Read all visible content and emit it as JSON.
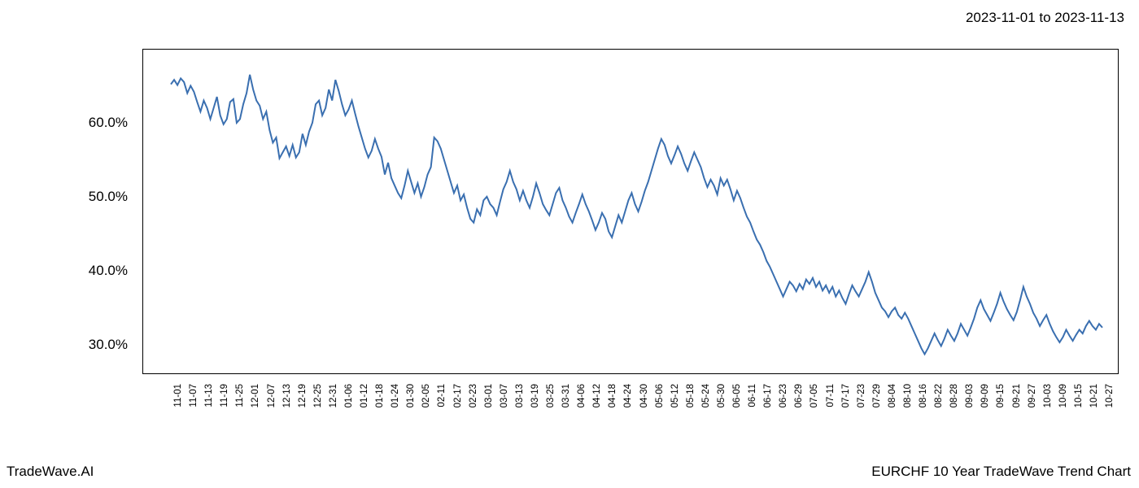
{
  "header": {
    "date_range": "2023-11-01 to 2023-11-13"
  },
  "footer": {
    "brand": "TradeWave.AI",
    "title": "EURCHF 10 Year TradeWave Trend Chart"
  },
  "chart": {
    "type": "line",
    "background_color": "#ffffff",
    "plot_border_color": "#000000",
    "grid_color": "#b3b3b3",
    "line_color": "#3a6fb0",
    "line_width": 2,
    "highlight_fill": "#dcebd3",
    "highlight_stroke": "#9abf87",
    "highlight_range": [
      "11-01",
      "11-13"
    ],
    "ylim": [
      26,
      70
    ],
    "yticks": [
      30.0,
      40.0,
      50.0,
      60.0
    ],
    "ytick_labels": [
      "30.0%",
      "40.0%",
      "50.0%",
      "60.0%"
    ],
    "x_labels": [
      "11-01",
      "11-07",
      "11-13",
      "11-19",
      "11-25",
      "12-01",
      "12-07",
      "12-13",
      "12-19",
      "12-25",
      "12-31",
      "01-06",
      "01-12",
      "01-18",
      "01-24",
      "01-30",
      "02-05",
      "02-11",
      "02-17",
      "02-23",
      "03-01",
      "03-07",
      "03-13",
      "03-19",
      "03-25",
      "03-31",
      "04-06",
      "04-12",
      "04-18",
      "04-24",
      "04-30",
      "05-06",
      "05-12",
      "05-18",
      "05-24",
      "05-30",
      "06-05",
      "06-11",
      "06-17",
      "06-23",
      "06-29",
      "07-05",
      "07-11",
      "07-17",
      "07-23",
      "07-29",
      "08-04",
      "08-10",
      "08-16",
      "08-22",
      "08-28",
      "09-03",
      "09-09",
      "09-15",
      "09-21",
      "09-27",
      "10-03",
      "10-09",
      "10-15",
      "10-21",
      "10-27"
    ],
    "series": [
      65.2,
      65.8,
      65.1,
      66.0,
      65.5,
      64.0,
      65.0,
      64.2,
      62.8,
      61.5,
      63.0,
      62.0,
      60.5,
      62.0,
      63.5,
      61.0,
      59.8,
      60.5,
      62.8,
      63.2,
      60.0,
      60.5,
      62.5,
      64.0,
      66.5,
      64.5,
      63.0,
      62.3,
      60.5,
      61.5,
      59.0,
      57.3,
      58.0,
      55.2,
      56.0,
      56.8,
      55.5,
      57.0,
      55.3,
      56.0,
      58.5,
      57.0,
      58.8,
      60.0,
      62.5,
      63.0,
      61.0,
      62.0,
      64.5,
      63.0,
      65.8,
      64.3,
      62.5,
      61.0,
      61.8,
      63.0,
      61.2,
      59.5,
      58.0,
      56.5,
      55.3,
      56.2,
      57.8,
      56.5,
      55.4,
      53.0,
      54.6,
      52.5,
      51.5,
      50.5,
      49.8,
      51.5,
      53.5,
      52.0,
      50.5,
      51.8,
      50.0,
      51.3,
      53.0,
      54.0,
      58.0,
      57.5,
      56.5,
      55.0,
      53.5,
      52.0,
      50.5,
      51.5,
      49.5,
      50.3,
      48.5,
      47.0,
      46.5,
      48.3,
      47.5,
      49.5,
      50.0,
      49.0,
      48.5,
      47.5,
      49.3,
      51.0,
      52.0,
      53.5,
      52.0,
      51.0,
      49.5,
      50.8,
      49.5,
      48.5,
      50.0,
      51.8,
      50.5,
      49.0,
      48.2,
      47.5,
      49.0,
      50.5,
      51.2,
      49.5,
      48.5,
      47.3,
      46.5,
      47.8,
      49.0,
      50.3,
      49.0,
      48.0,
      46.8,
      45.5,
      46.5,
      47.8,
      47.0,
      45.3,
      44.5,
      46.0,
      47.5,
      46.5,
      48.0,
      49.5,
      50.5,
      49.0,
      48.0,
      49.3,
      50.8,
      52.0,
      53.5,
      55.0,
      56.5,
      57.8,
      57.0,
      55.5,
      54.5,
      55.6,
      56.8,
      55.8,
      54.5,
      53.5,
      54.8,
      56.0,
      55.0,
      54.0,
      52.5,
      51.3,
      52.3,
      51.5,
      50.3,
      52.5,
      51.5,
      52.3,
      51.0,
      49.5,
      50.8,
      49.8,
      48.5,
      47.3,
      46.5,
      45.3,
      44.2,
      43.5,
      42.5,
      41.3,
      40.5,
      39.5,
      38.5,
      37.5,
      36.5,
      37.5,
      38.5,
      38.0,
      37.2,
      38.2,
      37.5,
      38.8,
      38.2,
      39.0,
      37.8,
      38.5,
      37.3,
      38.0,
      37.0,
      37.8,
      36.5,
      37.3,
      36.3,
      35.5,
      36.8,
      38.0,
      37.2,
      36.5,
      37.5,
      38.5,
      39.8,
      38.5,
      37.0,
      36.0,
      35.0,
      34.5,
      33.7,
      34.5,
      35.0,
      34.0,
      33.5,
      34.3,
      33.5,
      32.5,
      31.5,
      30.5,
      29.5,
      28.7,
      29.5,
      30.5,
      31.5,
      30.6,
      29.8,
      30.8,
      32.0,
      31.2,
      30.5,
      31.5,
      32.8,
      32.0,
      31.2,
      32.3,
      33.5,
      35.0,
      36.0,
      34.8,
      34.0,
      33.2,
      34.3,
      35.5,
      37.0,
      35.8,
      34.8,
      34.0,
      33.3,
      34.4,
      36.0,
      37.8,
      36.5,
      35.5,
      34.3,
      33.5,
      32.5,
      33.3,
      34.0,
      32.8,
      31.8,
      31.0,
      30.3,
      31.0,
      32.0,
      31.2,
      30.5,
      31.3,
      32.0,
      31.5,
      32.5,
      33.2,
      32.5,
      32.0,
      32.8,
      32.3
    ],
    "label_fontsize": 17,
    "xtick_fontsize": 11.5,
    "x_tick_count": 61
  }
}
